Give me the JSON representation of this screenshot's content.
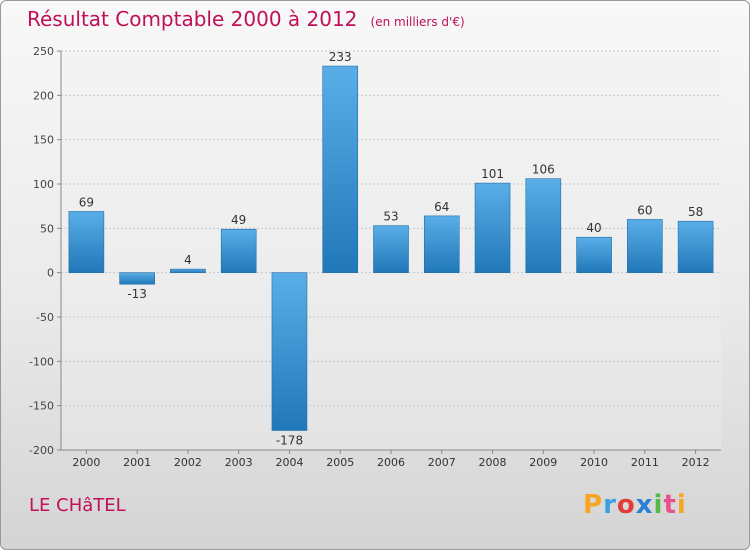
{
  "title": "Résultat Comptable 2000 à 2012",
  "subtitle": "(en milliers d'€)",
  "location": "LE CHâTEL",
  "brand": {
    "letters": [
      "P",
      "r",
      "o",
      "x",
      "i",
      "t",
      "i"
    ],
    "colors": [
      "#f5a623",
      "#3aa0e0",
      "#e23b3b",
      "#2a7fd4",
      "#56b847",
      "#e94f8a",
      "#f5a623"
    ]
  },
  "colors": {
    "title": "#c0105a",
    "bar_top": "#5aaee8",
    "bar_bottom": "#2178b8"
  },
  "chart_data": {
    "type": "bar",
    "title": "Résultat Comptable 2000 à 2012",
    "xlabel": "",
    "ylabel": "",
    "ylim": [
      -200,
      250
    ],
    "yticks": [
      250,
      200,
      150,
      100,
      50,
      0,
      -50,
      -100,
      -150,
      -200
    ],
    "grid": true,
    "categories": [
      "2000",
      "2001",
      "2002",
      "2003",
      "2004",
      "2005",
      "2006",
      "2007",
      "2008",
      "2009",
      "2010",
      "2011",
      "2012"
    ],
    "values": [
      69,
      -13,
      4,
      49,
      -178,
      233,
      53,
      64,
      101,
      106,
      40,
      60,
      58
    ]
  }
}
